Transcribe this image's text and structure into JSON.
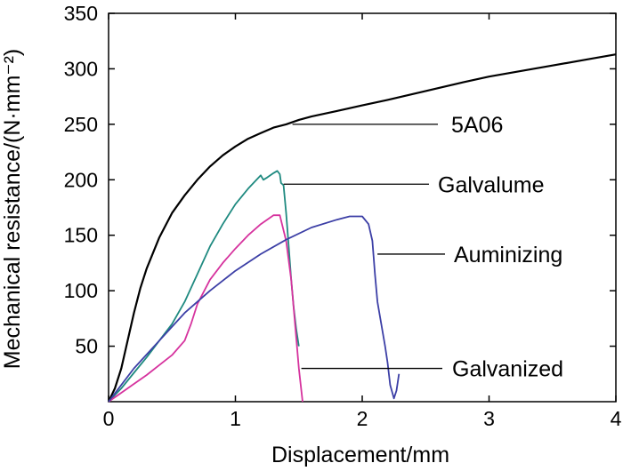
{
  "chart_data": {
    "type": "line",
    "title": "",
    "xlabel": "Displacement/mm",
    "ylabel": "Mechanical resistance/(N·mm⁻²)",
    "xlim": [
      0,
      4
    ],
    "ylim": [
      0,
      350
    ],
    "xticks": [
      0,
      1,
      2,
      3,
      4
    ],
    "yticks": [
      50,
      100,
      150,
      200,
      250,
      300,
      350
    ],
    "grid": false,
    "legend": "inline annotations with leader lines",
    "series": [
      {
        "name": "5A06",
        "color": "#000000",
        "x": [
          0,
          0.05,
          0.1,
          0.15,
          0.2,
          0.25,
          0.3,
          0.4,
          0.5,
          0.6,
          0.7,
          0.8,
          0.9,
          1.0,
          1.1,
          1.2,
          1.3,
          1.4,
          1.5,
          1.6,
          1.8,
          2.0,
          2.2,
          2.5,
          2.8,
          3.0,
          3.2,
          3.5,
          3.8,
          4.0
        ],
        "y": [
          0,
          12,
          30,
          55,
          80,
          102,
          120,
          148,
          170,
          186,
          200,
          212,
          222,
          230,
          237,
          242,
          247,
          250,
          254,
          257,
          262,
          267,
          272,
          280,
          288,
          293,
          297,
          303,
          309,
          313
        ]
      },
      {
        "name": "Galvalume",
        "color": "#1f8a80",
        "x": [
          0,
          0.1,
          0.2,
          0.3,
          0.4,
          0.5,
          0.6,
          0.7,
          0.8,
          0.9,
          1.0,
          1.1,
          1.2,
          1.22,
          1.25,
          1.3,
          1.33,
          1.35,
          1.36,
          1.38,
          1.4,
          1.42,
          1.44,
          1.46,
          1.48,
          1.5
        ],
        "y": [
          0,
          12,
          26,
          40,
          55,
          70,
          90,
          115,
          140,
          160,
          178,
          192,
          204,
          200,
          202,
          206,
          208,
          205,
          197,
          195,
          170,
          140,
          110,
          85,
          65,
          50
        ]
      },
      {
        "name": "Galvanized",
        "color": "#d6339e",
        "x": [
          0,
          0.1,
          0.2,
          0.3,
          0.4,
          0.5,
          0.6,
          0.65,
          0.7,
          0.8,
          0.9,
          1.0,
          1.1,
          1.2,
          1.3,
          1.35,
          1.4,
          1.44,
          1.47,
          1.5,
          1.53
        ],
        "y": [
          0,
          8,
          16,
          24,
          33,
          42,
          55,
          70,
          88,
          110,
          125,
          138,
          150,
          160,
          168,
          168,
          145,
          110,
          70,
          30,
          0
        ]
      },
      {
        "name": "Auminizing",
        "color": "#3c3fa6",
        "x": [
          0,
          0.2,
          0.4,
          0.6,
          0.8,
          1.0,
          1.2,
          1.4,
          1.6,
          1.8,
          1.9,
          2.0,
          2.05,
          2.08,
          2.1,
          2.12,
          2.15,
          2.18,
          2.2,
          2.22,
          2.25,
          2.27,
          2.29
        ],
        "y": [
          0,
          30,
          55,
          80,
          100,
          118,
          133,
          146,
          157,
          164,
          167,
          167,
          160,
          145,
          115,
          90,
          70,
          50,
          35,
          15,
          3,
          10,
          25
        ]
      }
    ],
    "annotations": [
      {
        "text": "5A06",
        "series": "5A06",
        "x": 1.45,
        "y": 250
      },
      {
        "text": "Galvalume",
        "series": "Galvalume",
        "x": 1.38,
        "y": 196
      },
      {
        "text": "Auminizing",
        "series": "Auminizing",
        "x": 2.12,
        "y": 133
      },
      {
        "text": "Galvanized",
        "series": "Galvanized",
        "x": 1.52,
        "y": 30
      }
    ]
  }
}
